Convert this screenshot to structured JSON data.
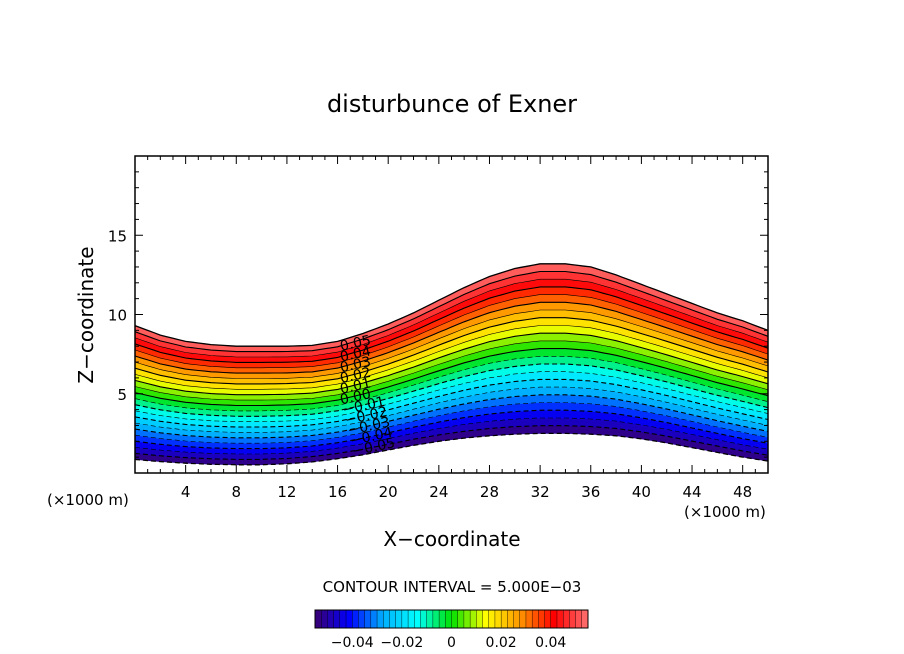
{
  "chart_data": {
    "type": "contour",
    "title": "disturbunce of Exner",
    "xlabel": "X−coordinate",
    "ylabel": "Z−coordinate",
    "x_unit_left": "(×1000 m)",
    "x_unit_right": "(×1000 m)",
    "xlim": [
      0,
      50
    ],
    "ylim": [
      0,
      20
    ],
    "x_ticks": [
      4,
      8,
      12,
      16,
      20,
      24,
      28,
      32,
      36,
      40,
      44,
      48
    ],
    "x_tick_labels": [
      "4",
      "8",
      "12",
      "16",
      "20",
      "24",
      "28",
      "32",
      "36",
      "40",
      "44",
      "48"
    ],
    "y_ticks": [
      5,
      10,
      15
    ],
    "y_tick_labels": [
      "5",
      "10",
      "15"
    ],
    "contour_interval_text": "CONTOUR INTERVAL = 5.000E−03",
    "contour_interval": 0.005,
    "contour_labels": [
      "0.05",
      "0.04",
      "0.03",
      "0.02",
      "0.01",
      "0.00",
      "−0.01",
      "−0.02",
      "−0.03",
      "−0.04",
      "−0.05"
    ],
    "field": {
      "value_range": [
        -0.055,
        0.055
      ],
      "terrain_profile": {
        "x": [
          0,
          2,
          4,
          6,
          8,
          10,
          12,
          14,
          16,
          18,
          20,
          22,
          24,
          26,
          28,
          30,
          32,
          34,
          36,
          38,
          40,
          42,
          44,
          46,
          48,
          50
        ],
        "bottom_z": [
          0.85,
          0.72,
          0.62,
          0.55,
          0.52,
          0.52,
          0.58,
          0.7,
          0.9,
          1.15,
          1.45,
          1.75,
          2.0,
          2.2,
          2.35,
          2.45,
          2.5,
          2.5,
          2.45,
          2.35,
          2.15,
          1.9,
          1.6,
          1.3,
          1.0,
          0.75
        ],
        "top_z": [
          9.3,
          8.7,
          8.3,
          8.1,
          8.0,
          8.0,
          8.0,
          8.05,
          8.3,
          8.8,
          9.4,
          10.1,
          10.9,
          11.7,
          12.4,
          12.9,
          13.2,
          13.2,
          13.0,
          12.5,
          11.9,
          11.3,
          10.7,
          10.1,
          9.6,
          9.0
        ]
      }
    },
    "colorbar": {
      "range": [
        -0.055,
        0.055
      ],
      "ticks": [
        -0.04,
        -0.02,
        0,
        0.02,
        0.04
      ],
      "tick_labels": [
        "−0.04",
        "−0.02",
        "0",
        "0.02",
        "0.04"
      ]
    },
    "grid": false,
    "colormap": [
      "#3a0070",
      "#0000ff",
      "#00b0ff",
      "#00ffff",
      "#00e000",
      "#ffff00",
      "#ff9900",
      "#ff0000",
      "#ff7070"
    ]
  }
}
